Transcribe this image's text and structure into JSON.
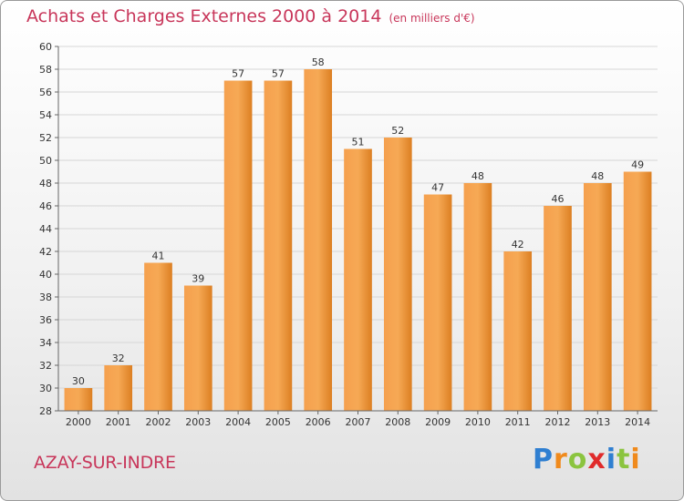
{
  "title": "Achats et Charges Externes 2000 à 2014",
  "unit_note": "(en milliers d'€)",
  "location": "AZAY-SUR-INDRE",
  "logo": {
    "text": "Proxiti",
    "letters": [
      {
        "ch": "P",
        "color": "#2f7fd1"
      },
      {
        "ch": "r",
        "color": "#f08a1c"
      },
      {
        "ch": "o",
        "color": "#8bc43f"
      },
      {
        "ch": "x",
        "color": "#e02b2b"
      },
      {
        "ch": "i",
        "color": "#2f7fd1"
      },
      {
        "ch": "t",
        "color": "#8bc43f"
      },
      {
        "ch": "i",
        "color": "#f08a1c"
      }
    ]
  },
  "colors": {
    "title": "#c8365a",
    "bar_light": "#f8a651",
    "bar_dark": "#d97a1c"
  },
  "chart_data": {
    "type": "bar",
    "categories": [
      "2000",
      "2001",
      "2002",
      "2003",
      "2004",
      "2005",
      "2006",
      "2007",
      "2008",
      "2009",
      "2010",
      "2011",
      "2012",
      "2013",
      "2014"
    ],
    "values": [
      30,
      32,
      41,
      39,
      57,
      57,
      58,
      51,
      52,
      47,
      48,
      42,
      46,
      48,
      49
    ],
    "ylim": [
      28,
      60
    ],
    "yticks": [
      28,
      30,
      32,
      34,
      36,
      38,
      40,
      42,
      44,
      46,
      48,
      50,
      52,
      54,
      56,
      58,
      60
    ],
    "grid": true,
    "xlabel": "",
    "ylabel": ""
  }
}
